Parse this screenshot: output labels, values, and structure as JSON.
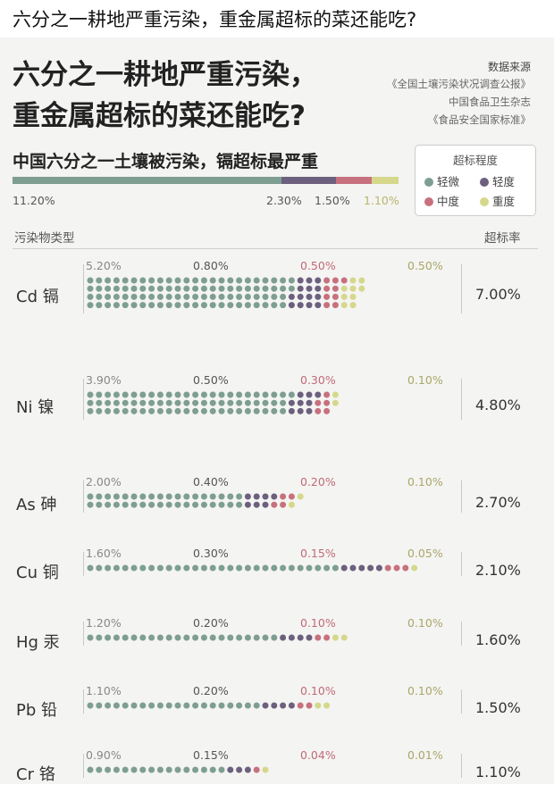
{
  "page_title": "六分之一耕地严重污染，重金属超标的菜还能吃?",
  "headline": [
    "六分之一耕地严重污染，",
    "重金属超标的菜还能吃?"
  ],
  "sources": {
    "title": "数据来源",
    "items": [
      "《全国土壤污染状况调查公报》",
      "中国食品卫生杂志",
      "《食品安全国家标准》"
    ]
  },
  "colors": {
    "slight": "#7e9e92",
    "light": "#6c607e",
    "moderate": "#c7717e",
    "severe": "#d5d88b"
  },
  "chart_data": {
    "type": "dot-matrix",
    "title": "中国六分之一土壤被污染，镉超标最严重",
    "legend_title": "超标程度",
    "legend": [
      "轻微",
      "轻度",
      "中度",
      "重度"
    ],
    "overall": {
      "values": [
        11.2,
        2.3,
        1.5,
        1.1
      ],
      "labels": [
        "11.20%",
        "2.30%",
        "1.50%",
        "1.10%"
      ]
    },
    "xlabel": "污染物类型",
    "ylabel": "超标率",
    "rows": [
      {
        "name": "Cd 镉",
        "labels": [
          "5.20%",
          "0.80%",
          "0.50%",
          "0.50%"
        ],
        "values": [
          5.2,
          0.8,
          0.5,
          0.5
        ],
        "total": "7.00%"
      },
      {
        "name": "Ni 镍",
        "labels": [
          "3.90%",
          "0.50%",
          "0.30%",
          "0.10%"
        ],
        "values": [
          3.9,
          0.5,
          0.3,
          0.1
        ],
        "total": "4.80%"
      },
      {
        "name": "As 砷",
        "labels": [
          "2.00%",
          "0.40%",
          "0.20%",
          "0.10%"
        ],
        "values": [
          2.0,
          0.4,
          0.2,
          0.1
        ],
        "total": "2.70%"
      },
      {
        "name": "Cu 铜",
        "labels": [
          "1.60%",
          "0.30%",
          "0.15%",
          "0.05%"
        ],
        "values": [
          1.6,
          0.3,
          0.15,
          0.05
        ],
        "total": "2.10%"
      },
      {
        "name": "Hg 汞",
        "labels": [
          "1.20%",
          "0.20%",
          "0.10%",
          "0.10%"
        ],
        "values": [
          1.2,
          0.2,
          0.1,
          0.1
        ],
        "total": "1.60%"
      },
      {
        "name": "Pb 铅",
        "labels": [
          "1.10%",
          "0.20%",
          "0.10%",
          "0.10%"
        ],
        "values": [
          1.1,
          0.2,
          0.1,
          0.1
        ],
        "total": "1.50%"
      },
      {
        "name": "Cr 铬",
        "labels": [
          "0.90%",
          "0.15%",
          "0.04%",
          "0.01%"
        ],
        "values": [
          0.9,
          0.15,
          0.04,
          0.01
        ],
        "total": "1.10%"
      }
    ]
  }
}
